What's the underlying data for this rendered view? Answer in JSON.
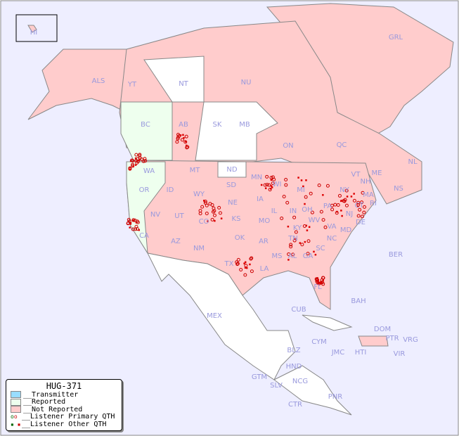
{
  "title": "HUG-371",
  "colors": {
    "ocean": "#eeeeff",
    "transmitter": "#99ddff",
    "reported": "#eeffee",
    "not_reported": "#ffcccc",
    "other": "#ffffff",
    "primary": "#cc0000",
    "other_qth": "#dd0000",
    "label": "#9999dd"
  },
  "legend": [
    {
      "label": "__Transmitter",
      "swatch": "transmitter"
    },
    {
      "label": "__Reported",
      "swatch": "reported"
    },
    {
      "label": "__Not Reported",
      "swatch": "not_reported"
    },
    {
      "label": "__Listener Primary QTH",
      "swatch": "primary-icon"
    },
    {
      "label": "__Listener Other QTH",
      "swatch": "other-icon"
    }
  ],
  "regions": [
    "HI",
    "ALS",
    "YT",
    "NT",
    "NU",
    "GRL",
    "BC",
    "AB",
    "SK",
    "MB",
    "ON",
    "QC",
    "NL",
    "NS",
    "WA",
    "MT",
    "ND",
    "MN",
    "OR",
    "ID",
    "WY",
    "SD",
    "WI",
    "MI",
    "NY",
    "VT",
    "NH",
    "ME",
    "MA",
    "RI",
    "CT",
    "NJ",
    "PA",
    "DE",
    "MD",
    "NE",
    "IA",
    "IL",
    "IN",
    "OH",
    "WV",
    "VA",
    "NV",
    "UT",
    "CO",
    "KS",
    "MO",
    "KY",
    "CA",
    "AZ",
    "NM",
    "OK",
    "AR",
    "TN",
    "NC",
    "SC",
    "TX",
    "LA",
    "MS",
    "AL",
    "GA",
    "FL",
    "MEX",
    "CUB",
    "BAH",
    "BER",
    "DOM",
    "PTR",
    "VRG",
    "CYM",
    "JMC",
    "HTI",
    "VIR",
    "BLZ",
    "HND",
    "GTM",
    "SLV",
    "NCG",
    "CTR",
    "PNR"
  ]
}
